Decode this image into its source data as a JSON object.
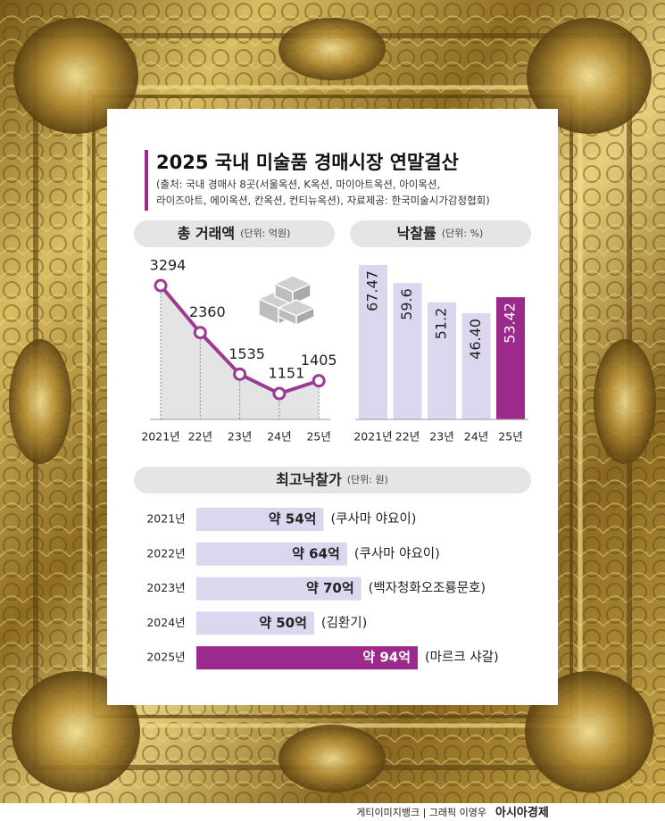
{
  "header": {
    "title": "2025 국내 미술품 경매시장 연말결산",
    "source": [
      "(출처: 국내 경매사 8곳(서울옥션, K옥션, 마이아트옥션, 아이옥션,",
      "라이즈아트, 에이옥션, 칸옥션, 컨티뉴옥션), 자료제공: 한국미술시가감정협회)"
    ]
  },
  "chart_data": [
    {
      "type": "line",
      "title": "총 거래액",
      "unit": "(단위: 억원)",
      "categories": [
        "2021년",
        "22년",
        "23년",
        "24년",
        "25년"
      ],
      "values": [
        3294,
        2360,
        1535,
        1151,
        1405
      ],
      "color": "#9c3a94"
    },
    {
      "type": "bar",
      "title": "낙찰률",
      "unit": "(단위: %)",
      "categories": [
        "2021년",
        "22년",
        "23년",
        "24년",
        "25년"
      ],
      "values": [
        67.47,
        59.6,
        51.2,
        46.4,
        53.42
      ],
      "value_labels": [
        "67.47",
        "59.6",
        "51.2",
        "46.40",
        "53.42"
      ],
      "colors": [
        "#dcd7ee",
        "#dcd7ee",
        "#dcd7ee",
        "#dcd7ee",
        "#9c2a8c"
      ]
    },
    {
      "type": "hbar",
      "title": "최고낙찰가",
      "unit": "(단위: 원)",
      "categories": [
        "2021년",
        "2022년",
        "2023년",
        "2024년",
        "2025년"
      ],
      "values": [
        54,
        64,
        70,
        50,
        94
      ],
      "value_labels": [
        "약 54억",
        "약 64억",
        "약 70억",
        "약 50억",
        "약 94억"
      ],
      "annotations": [
        "(쿠사마 야요이)",
        "(쿠사마 야요이)",
        "(백자청화오조룡문호)",
        "(김환기)",
        "(마르크 샤갈)"
      ],
      "colors": [
        "#dcd7ee",
        "#dcd7ee",
        "#dcd7ee",
        "#dcd7ee",
        "#9c2a8c"
      ]
    }
  ],
  "footer": {
    "credit": "게티이미지뱅크 | 그래픽 이영우",
    "brand": "아시아경제"
  }
}
